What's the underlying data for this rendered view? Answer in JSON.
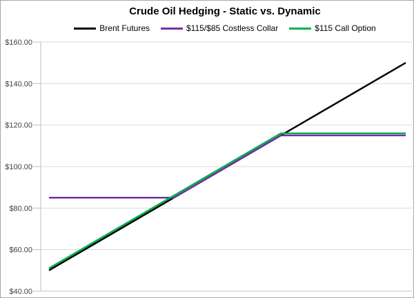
{
  "chart_data": {
    "type": "line",
    "title": "Crude Oil Hedging - Static vs. Dynamic",
    "xlabel": "",
    "ylabel": "",
    "x_axis": {
      "labels_visible": false,
      "underlying_price_range": [
        50,
        150
      ]
    },
    "y_axis": {
      "tick_values": [
        40,
        60,
        80,
        100,
        120,
        140,
        160
      ],
      "tick_labels": [
        "$40.00",
        "$60.00",
        "$80.00",
        "$100.00",
        "$120.00",
        "$140.00",
        "$160.00"
      ],
      "ylim": [
        40,
        160
      ],
      "format": "currency"
    },
    "grid": true,
    "legend_position": "top",
    "series": [
      {
        "name": "Brent Futures",
        "color": "#000000",
        "points": [
          [
            50,
            50
          ],
          [
            150,
            150
          ]
        ]
      },
      {
        "name": "$115/$85 Costless Collar",
        "color": "#7030A0",
        "floor": 85,
        "cap": 115,
        "points": [
          [
            50,
            85
          ],
          [
            85,
            85
          ],
          [
            115,
            115
          ],
          [
            150,
            115
          ]
        ]
      },
      {
        "name": "$115 Call Option",
        "color": "#00B050",
        "strike": 115,
        "points": [
          [
            50,
            51
          ],
          [
            115,
            116
          ],
          [
            150,
            116
          ]
        ]
      }
    ],
    "colors": {
      "gridline": "#d9d9d9",
      "axis": "#bfbfbf",
      "tick_label": "#404040",
      "background": "#ffffff"
    }
  }
}
